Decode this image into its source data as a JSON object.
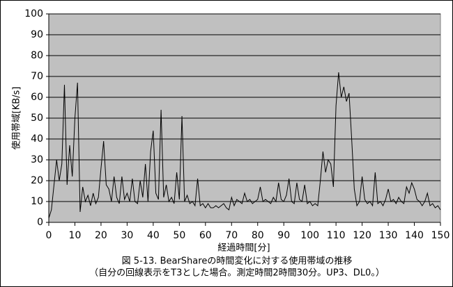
{
  "chart_data": {
    "type": "line",
    "title": "図 5-13. BearShareの時間変化に対する使用帯域の推移",
    "subtitle": "（自分の回線表示をT3とした場合。測定時間2時間30分。UP3、DL0。）",
    "x_label": "経過時間[分]",
    "y_label": "使用帯域[KB/s]",
    "xlim": [
      0,
      150
    ],
    "ylim": [
      0,
      100
    ],
    "xticks": [
      0,
      10,
      20,
      30,
      40,
      50,
      60,
      70,
      80,
      90,
      100,
      110,
      120,
      130,
      140,
      150
    ],
    "yticks": [
      0,
      10,
      20,
      30,
      40,
      50,
      60,
      70,
      80,
      90,
      100
    ],
    "grid": true,
    "background": "#c0c0c0",
    "x": [
      0,
      1,
      2,
      3,
      4,
      5,
      6,
      7,
      8,
      9,
      10,
      11,
      12,
      13,
      14,
      15,
      16,
      17,
      18,
      19,
      20,
      21,
      22,
      23,
      24,
      25,
      26,
      27,
      28,
      29,
      30,
      31,
      32,
      33,
      34,
      35,
      36,
      37,
      38,
      39,
      40,
      41,
      42,
      43,
      44,
      45,
      46,
      47,
      48,
      49,
      50,
      51,
      52,
      53,
      54,
      55,
      56,
      57,
      58,
      59,
      60,
      61,
      62,
      63,
      64,
      65,
      66,
      67,
      68,
      69,
      70,
      71,
      72,
      73,
      74,
      75,
      76,
      77,
      78,
      79,
      80,
      81,
      82,
      83,
      84,
      85,
      86,
      87,
      88,
      89,
      90,
      91,
      92,
      93,
      94,
      95,
      96,
      97,
      98,
      99,
      100,
      101,
      102,
      103,
      104,
      105,
      106,
      107,
      108,
      109,
      110,
      111,
      112,
      113,
      114,
      115,
      116,
      117,
      118,
      119,
      120,
      121,
      122,
      123,
      124,
      125,
      126,
      127,
      128,
      129,
      130,
      131,
      132,
      133,
      134,
      135,
      136,
      137,
      138,
      139,
      140,
      141,
      142,
      143,
      144,
      145,
      146,
      147,
      148,
      149,
      150
    ],
    "series": [
      {
        "color": "#000000",
        "values": [
          2,
          6,
          18,
          30,
          20,
          28,
          66,
          18,
          37,
          22,
          50,
          67,
          5,
          17,
          10,
          13,
          8,
          14,
          9,
          12,
          26,
          39,
          18,
          16,
          10,
          22,
          12,
          9,
          22,
          11,
          14,
          10,
          21,
          10,
          9,
          20,
          12,
          28,
          10,
          34,
          44,
          14,
          11,
          54,
          12,
          18,
          10,
          12,
          9,
          24,
          11,
          51,
          10,
          13,
          9,
          10,
          8,
          21,
          8,
          9,
          7,
          9,
          7,
          7,
          8,
          7,
          8,
          9,
          7,
          6,
          12,
          8,
          11,
          10,
          9,
          14,
          10,
          11,
          9,
          10,
          11,
          17,
          10,
          11,
          10,
          9,
          12,
          10,
          19,
          11,
          10,
          13,
          21,
          10,
          9,
          19,
          11,
          10,
          18,
          9,
          10,
          8,
          9,
          8,
          20,
          34,
          24,
          30,
          28,
          17,
          56,
          72,
          60,
          65,
          58,
          62,
          40,
          16,
          8,
          10,
          22,
          11,
          9,
          10,
          8,
          24,
          9,
          10,
          8,
          11,
          16,
          10,
          11,
          9,
          12,
          10,
          9,
          17,
          14,
          19,
          16,
          11,
          10,
          8,
          10,
          14,
          8,
          9,
          7,
          8,
          6
        ]
      }
    ]
  }
}
